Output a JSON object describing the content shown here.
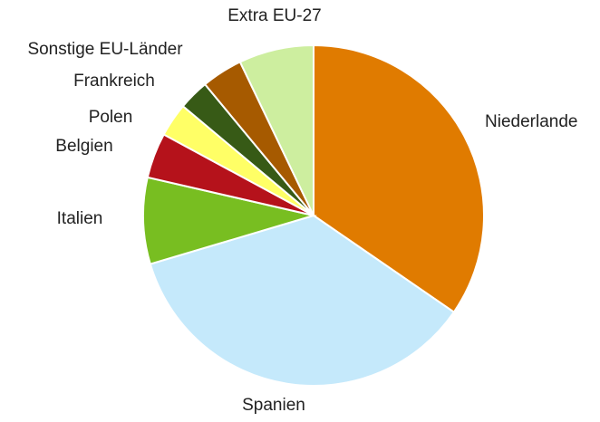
{
  "chart_data": {
    "type": "pie",
    "categories": [
      "Niederlande",
      "Spanien",
      "Italien",
      "Belgien",
      "Polen",
      "Frankreich",
      "Sonstige EU-Länder",
      "Extra EU-27"
    ],
    "values": [
      34.6,
      35.8,
      8.2,
      4.3,
      3.2,
      2.9,
      3.9,
      7.1
    ],
    "colors": [
      "#e07b00",
      "#c5e9fb",
      "#78be21",
      "#b5121b",
      "#ffff66",
      "#375a16",
      "#a65a00",
      "#cdee9f"
    ]
  }
}
